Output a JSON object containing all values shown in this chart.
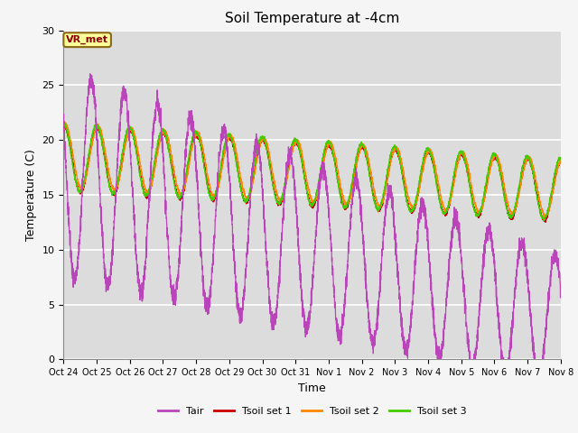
{
  "title": "Soil Temperature at -4cm",
  "xlabel": "Time",
  "ylabel": "Temperature (C)",
  "ylim": [
    0,
    30
  ],
  "xlim": [
    0,
    15
  ],
  "plot_bg": "#dcdcdc",
  "fig_bg": "#f5f5f5",
  "annotation_text": "VR_met",
  "annotation_bg": "#ffff99",
  "annotation_border": "#8B6914",
  "colors": {
    "Tair": "#bb44bb",
    "Tsoil1": "#cc0000",
    "Tsoil2": "#ff8800",
    "Tsoil3": "#44cc00"
  },
  "legend_labels": [
    "Tair",
    "Tsoil set 1",
    "Tsoil set 2",
    "Tsoil set 3"
  ],
  "xtick_labels": [
    "Oct 24",
    "Oct 25",
    "Oct 26",
    "Oct 27",
    "Oct 28",
    "Oct 29",
    "Oct 30",
    "Oct 31",
    "Nov 1",
    "Nov 2",
    "Nov 3",
    "Nov 4",
    "Nov 5",
    "Nov 6",
    "Nov 7",
    "Nov 8"
  ],
  "ytick_vals": [
    0,
    5,
    10,
    15,
    20,
    25,
    30
  ],
  "num_days": 15
}
